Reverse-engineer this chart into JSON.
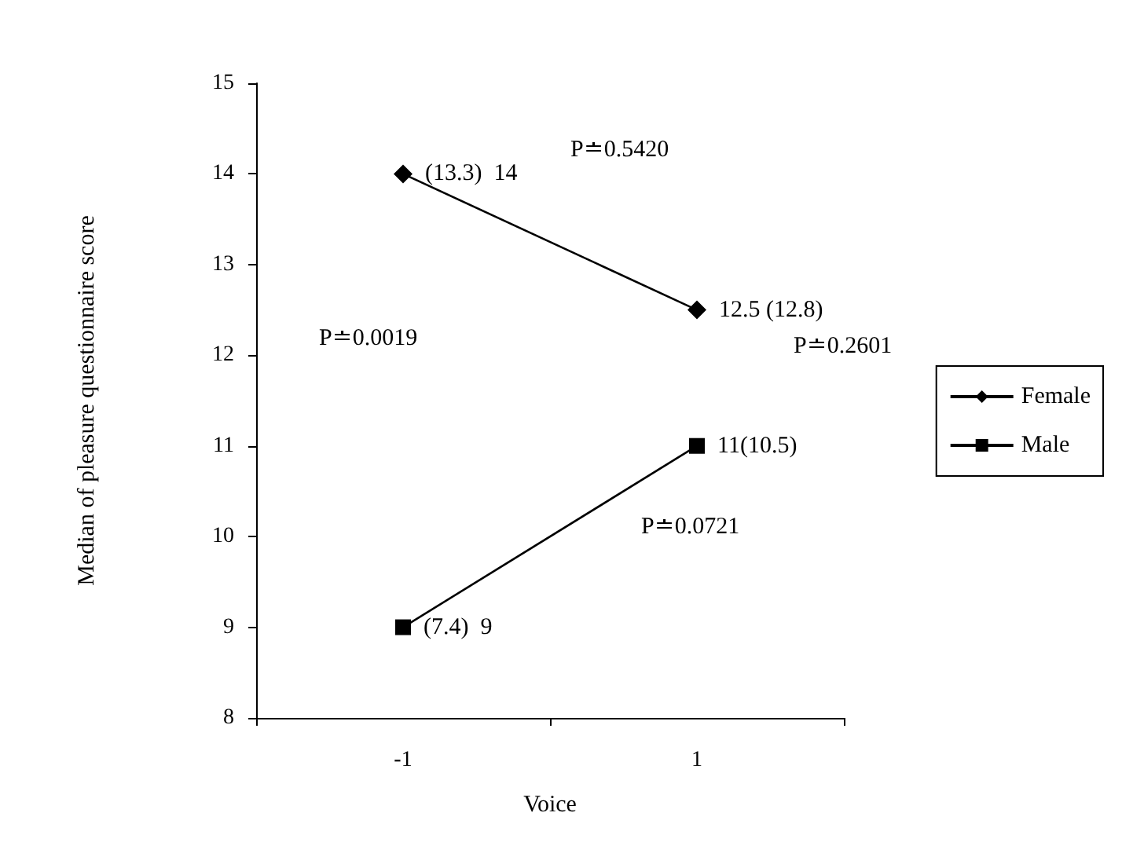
{
  "chart_data": {
    "type": "line",
    "xlabel": "Voice",
    "ylabel": "Median of pleasure questionnaire score",
    "categories": [
      "-1",
      "1"
    ],
    "series": [
      {
        "name": "Female",
        "color": "#000000",
        "marker": "diamond",
        "values": [
          14,
          12.5
        ],
        "value_labels": [
          "(13.3)  14",
          "12.5 (12.8)"
        ]
      },
      {
        "name": "Male",
        "color": "#000000",
        "marker": "square",
        "values": [
          9,
          11
        ],
        "value_labels": [
          "(7.4)  9",
          "11(10.5)"
        ]
      }
    ],
    "ylim": [
      8,
      15
    ],
    "yticks": [
      8,
      9,
      10,
      11,
      12,
      13,
      14,
      15
    ],
    "grid": false,
    "legend": "right",
    "annotations": [
      "P≐0.5420",
      "P≐0.0019",
      "P≐0.2601",
      "P≐0.0721"
    ]
  }
}
